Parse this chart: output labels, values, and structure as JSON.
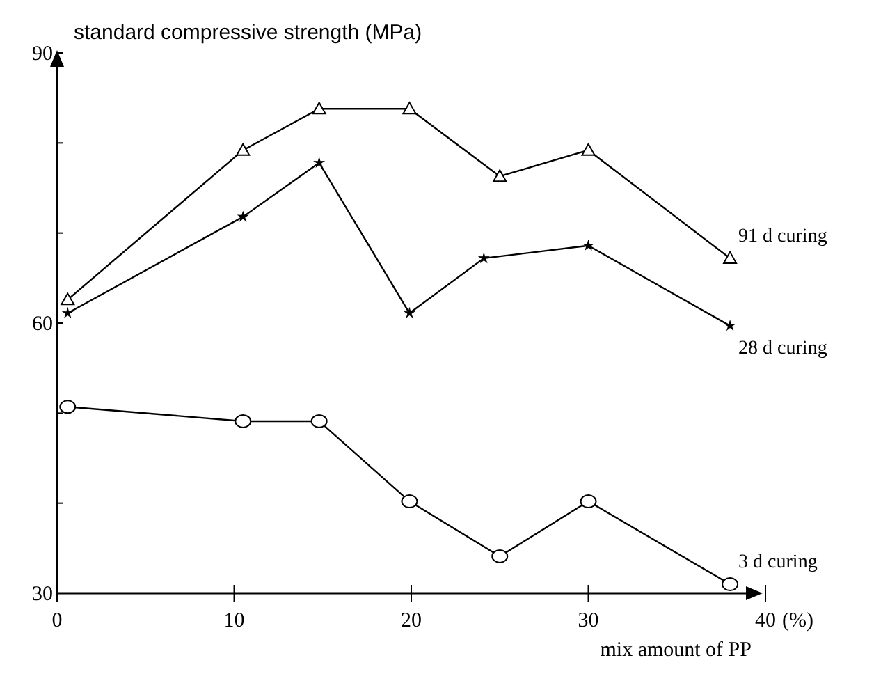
{
  "chart_data": {
    "type": "line",
    "xlabel": "mix amount of PP",
    "ylabel": "standard  compressive strength (MPa)",
    "annotations": [
      "(%)"
    ],
    "xlim": [
      0,
      40
    ],
    "ylim": [
      30,
      90
    ],
    "xticks": [
      0,
      10,
      20,
      30,
      40
    ],
    "yticks": [
      30,
      {
        "value": 40,
        "label": null
      },
      {
        "value": 50,
        "label": null
      },
      60,
      {
        "value": 70,
        "label": null
      },
      {
        "value": 80,
        "label": null
      },
      90
    ],
    "legend": false,
    "grid": false,
    "line_style": "solid",
    "series": [
      {
        "name": "91 d curing",
        "color": "#000000",
        "marker": "triangle",
        "x": [
          0.6,
          10.5,
          14.8,
          19.9,
          25,
          30,
          38
        ],
        "values": [
          62.6,
          79.2,
          83.8,
          83.8,
          76.3,
          79.2,
          67.2
        ]
      },
      {
        "name": "28 d curing",
        "color": "#000000",
        "marker": "star",
        "x": [
          0.6,
          10.5,
          14.8,
          19.9,
          24.1,
          30,
          38
        ],
        "values": [
          61.1,
          71.8,
          77.8,
          61.1,
          67.2,
          68.6,
          59.7
        ]
      },
      {
        "name": "3 d curing",
        "color": "#000000",
        "marker": "circle",
        "x": [
          0.6,
          10.5,
          14.8,
          19.9,
          25,
          30,
          38
        ],
        "values": [
          50.7,
          49.1,
          49.1,
          40.2,
          34.1,
          40.2,
          31
        ]
      }
    ]
  }
}
